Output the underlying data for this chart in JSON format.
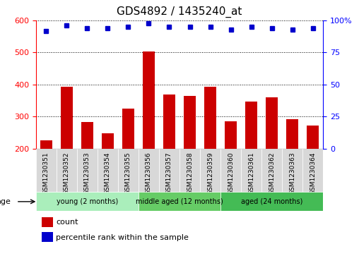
{
  "title": "GDS4892 / 1435240_at",
  "samples": [
    "GSM1230351",
    "GSM1230352",
    "GSM1230353",
    "GSM1230354",
    "GSM1230355",
    "GSM1230356",
    "GSM1230357",
    "GSM1230358",
    "GSM1230359",
    "GSM1230360",
    "GSM1230361",
    "GSM1230362",
    "GSM1230363",
    "GSM1230364"
  ],
  "counts": [
    225,
    393,
    282,
    248,
    325,
    503,
    368,
    365,
    393,
    285,
    347,
    359,
    292,
    272
  ],
  "percentiles": [
    92,
    96,
    94,
    94,
    95,
    98,
    95,
    95,
    95,
    93,
    95,
    94,
    93,
    94
  ],
  "groups": [
    {
      "label": "young (2 months)",
      "start": 0,
      "end": 4,
      "color": "#AAEAAA"
    },
    {
      "label": "middle aged (12 months)",
      "start": 5,
      "end": 8,
      "color": "#66CC66"
    },
    {
      "label": "aged (24 months)",
      "start": 9,
      "end": 13,
      "color": "#44BB44"
    }
  ],
  "age_label": "age",
  "bar_color": "#CC0000",
  "dot_color": "#0000CC",
  "ylim_left": [
    200,
    600
  ],
  "ylim_right": [
    0,
    100
  ],
  "yticks_left": [
    200,
    300,
    400,
    500,
    600
  ],
  "yticks_right": [
    0,
    25,
    50,
    75,
    100
  ],
  "ytick_right_labels": [
    "0",
    "25",
    "50",
    "75",
    "100%"
  ],
  "legend_count_label": "count",
  "legend_pct_label": "percentile rank within the sample",
  "title_fontsize": 11,
  "tick_fontsize": 8,
  "label_fontsize": 8,
  "group_colors": [
    "#AAEEBB",
    "#66CC66",
    "#44BB55"
  ]
}
